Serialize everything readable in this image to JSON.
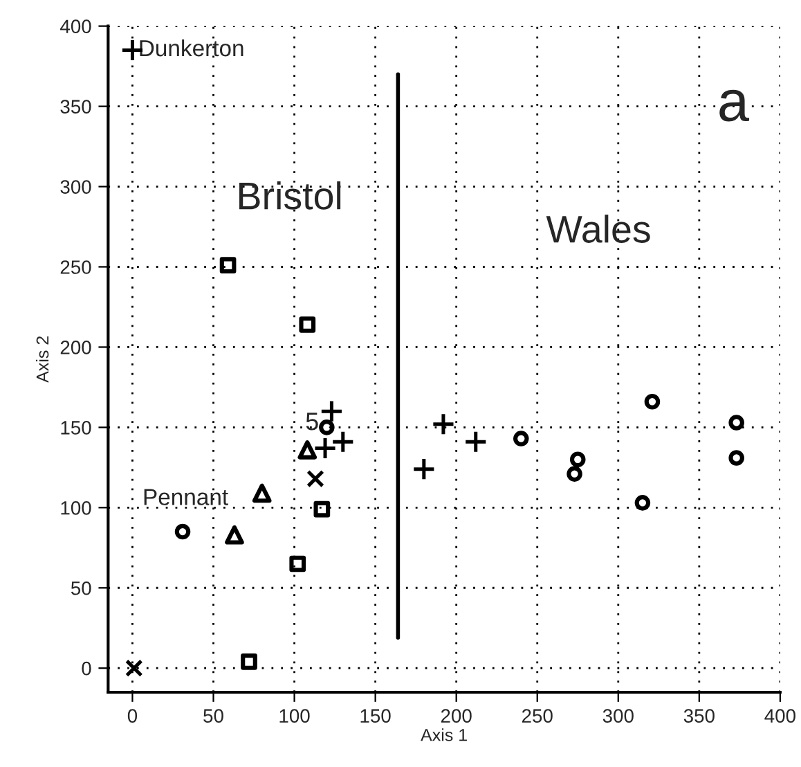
{
  "chart_data": {
    "type": "scatter",
    "xlabel": "Axis 1",
    "ylabel": "Axis 2",
    "xlim": [
      -15,
      400
    ],
    "ylim": [
      -15,
      400
    ],
    "xticks": [
      0,
      50,
      100,
      150,
      200,
      250,
      300,
      350,
      400
    ],
    "yticks": [
      0,
      50,
      100,
      150,
      200,
      250,
      300,
      350,
      400
    ],
    "grid": true,
    "legend": false,
    "series": [
      {
        "marker": "square",
        "color": "#000000",
        "x": [
          59,
          108,
          117,
          102,
          72
        ],
        "values": [
          251,
          214,
          99,
          65,
          4
        ]
      },
      {
        "marker": "triangle",
        "color": "#000000",
        "x": [
          108,
          80,
          63
        ],
        "values": [
          136,
          109,
          83
        ]
      },
      {
        "marker": "circle",
        "color": "#000000",
        "x": [
          31,
          120,
          240,
          275,
          273,
          321,
          315,
          373,
          373
        ],
        "values": [
          85,
          150,
          143,
          130,
          121,
          166,
          103,
          153,
          131
        ]
      },
      {
        "marker": "x",
        "color": "#000000",
        "x": [
          1,
          113
        ],
        "values": [
          0,
          118
        ]
      },
      {
        "marker": "cross",
        "color": "#000000",
        "x": [
          0,
          123,
          119,
          130,
          192,
          212,
          180
        ],
        "values": [
          385,
          160,
          137,
          141,
          152,
          141,
          124
        ]
      },
      {
        "type": "line",
        "marker": "none",
        "color": "#000000",
        "x": [
          164,
          164
        ],
        "values": [
          370,
          19
        ]
      }
    ],
    "annotations": [
      {
        "text": "Dunkerton",
        "x": 0,
        "y": 385
      },
      {
        "text": "5",
        "x": 120,
        "y": 150
      },
      "Pennant",
      "Bristol",
      "Wales",
      "a"
    ]
  }
}
